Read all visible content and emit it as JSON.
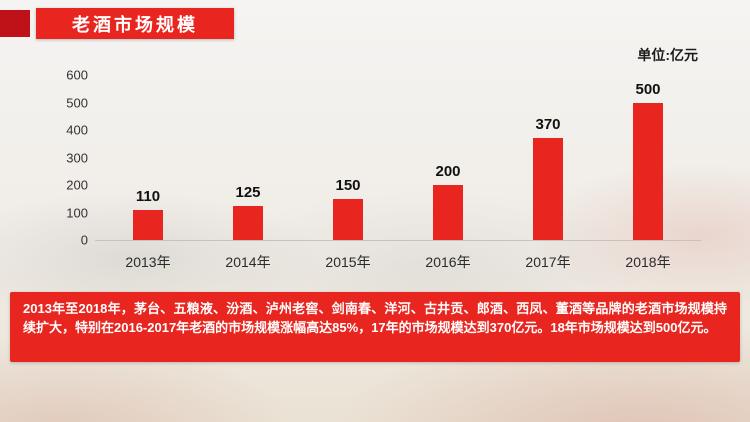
{
  "header": {
    "title": "老酒市场规模",
    "unit_label": "单位:亿元"
  },
  "chart_data": {
    "type": "bar",
    "title": "老酒市场规模",
    "unit": "亿元",
    "categories": [
      "2013年",
      "2014年",
      "2015年",
      "2016年",
      "2017年",
      "2018年"
    ],
    "values": [
      110,
      125,
      150,
      200,
      370,
      500
    ],
    "ylim": [
      0,
      600
    ],
    "yticks": [
      0,
      100,
      200,
      300,
      400,
      500,
      600
    ],
    "bar_color": "#e8251f",
    "grid": false,
    "legend": "none",
    "value_labels": true
  },
  "caption": {
    "text": "2013年至2018年，茅台、五粮液、汾酒、泸州老窖、剑南春、洋河、古井贡、郎酒、西凤、董酒等品牌的老酒市场规模持续扩大，特别在2016-2017年老酒的市场规模涨幅高达85%，17年的市场规模达到370亿元。18年市场规模达到500亿元。"
  },
  "colors": {
    "accent_red": "#e8251f",
    "dark_red": "#bf1218",
    "text_dark": "#1a1a1a"
  }
}
